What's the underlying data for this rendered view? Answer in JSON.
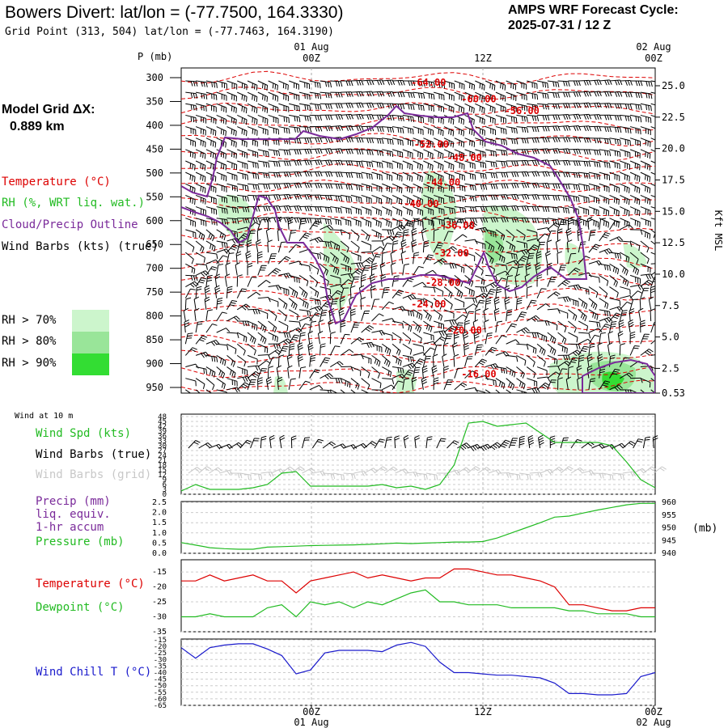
{
  "header": {
    "title": "Bowers Divert:  lat/lon = (-77.7500, 164.3330)",
    "subtitle": "Grid Point (313, 504) lat/lon = (-77.7463, 164.3190)",
    "cycle_line1": "AMPS WRF Forecast Cycle:",
    "cycle_line2": "2025-07-31 / 12  Z"
  },
  "model": {
    "label": "Model Grid ΔX:",
    "value": "0.889 km"
  },
  "legend": {
    "temperature": "Temperature (°C)",
    "rh": "RH (%, WRT liq. wat.)",
    "cloud": "Cloud/Precip Outline",
    "barbs": "Wind Barbs (kts) (true)",
    "rh70": "RH > 70%",
    "rh80": "RH > 80%",
    "rh90": "RH > 90%"
  },
  "colors": {
    "temp": "#dd0000",
    "rh_green": "#22bb22",
    "cloud": "#7a2a9a",
    "rh70": "#ccf5cc",
    "rh80": "#99e599",
    "rh90": "#33dd33",
    "chill": "#1a1acc"
  },
  "time_axis": {
    "top_dates": [
      "01 Aug",
      "02 Aug"
    ],
    "ticks": [
      "00Z",
      "12Z",
      "00Z"
    ],
    "bottom_dates": [
      "01 Aug",
      "02 Aug"
    ]
  },
  "chart_data": [
    {
      "type": "line",
      "panel": "vertical_cross_section",
      "y_axis_label": "P (mb)",
      "y_ticks": [
        "300",
        "350",
        "400",
        "450",
        "500",
        "550",
        "600",
        "650",
        "700",
        "750",
        "800",
        "850",
        "900",
        "950"
      ],
      "right_ticks": [
        "25.0",
        "22.5",
        "20.0",
        "17.5",
        "15.0",
        "12.5",
        "10.0",
        "7.5",
        "5.0",
        "2.5",
        "0.53"
      ],
      "right_axis_label": "Kft MSL",
      "ylim": [
        950,
        300
      ],
      "isotherm_labels": [
        {
          "text": "-64.00",
          "t": 7.0,
          "p": 310
        },
        {
          "text": "-60.00",
          "t": 10.5,
          "p": 345
        },
        {
          "text": "-56.00",
          "t": 13.5,
          "p": 370
        },
        {
          "text": "-52.00",
          "t": 7.2,
          "p": 440
        },
        {
          "text": "-48.00",
          "t": 9.5,
          "p": 468
        },
        {
          "text": "-44.00",
          "t": 8.0,
          "p": 520
        },
        {
          "text": "-40.00",
          "t": 6.5,
          "p": 565
        },
        {
          "text": "-36.00",
          "t": 9.0,
          "p": 610
        },
        {
          "text": "-32.00",
          "t": 8.6,
          "p": 668
        },
        {
          "text": "-28.00",
          "t": 8.0,
          "p": 730
        },
        {
          "text": "-24.00",
          "t": 7.0,
          "p": 775
        },
        {
          "text": "-20.00",
          "t": 9.5,
          "p": 830
        },
        {
          "text": "-16.00",
          "t": 10.5,
          "p": 922
        }
      ]
    },
    {
      "type": "line",
      "panel": "wind_10m",
      "title": "Wind at 10 m",
      "labels": [
        "Wind Spd (kts)",
        "Wind Barbs (true)",
        "Wind Barbs (grid)"
      ],
      "y_ticks": [
        "48",
        "45",
        "42",
        "39",
        "36",
        "33",
        "30",
        "27",
        "24",
        "21",
        "18",
        "15",
        "12",
        "9",
        "6",
        "3",
        "0"
      ],
      "ylim": [
        0,
        48
      ],
      "x": [
        -9,
        -8,
        -7,
        -6,
        -5,
        -4,
        -3,
        -2,
        -1,
        0,
        1,
        2,
        3,
        4,
        5,
        6,
        7,
        8,
        9,
        10,
        11,
        12,
        13,
        14,
        15,
        16,
        17,
        18,
        19,
        20,
        21,
        22,
        23,
        24
      ],
      "values": [
        2,
        6,
        3,
        3,
        3,
        4,
        6,
        13,
        14,
        5,
        5,
        5,
        5,
        5,
        6,
        4,
        5,
        3,
        6,
        18,
        44,
        45,
        42,
        43,
        44,
        38,
        32,
        32,
        32,
        32,
        30,
        20,
        9,
        4
      ]
    },
    {
      "type": "line",
      "panel": "precip_pressure",
      "labels": [
        "Precip (mm)",
        "liq. equiv.",
        "1-hr accum",
        "Pressure (mb)"
      ],
      "left_ticks": [
        "2.5",
        "2.0",
        "1.5",
        "1.0",
        "0.5",
        "0.0"
      ],
      "right_ticks": [
        "960",
        "955",
        "950",
        "945",
        "940"
      ],
      "right_unit": "(mb)",
      "ylim_precip": [
        0,
        2.5
      ],
      "ylim_pressure": [
        940,
        960
      ],
      "x": [
        -9,
        -8,
        -7,
        -6,
        -5,
        -4,
        -3,
        -2,
        -1,
        0,
        1,
        2,
        3,
        4,
        5,
        6,
        7,
        8,
        9,
        10,
        11,
        12,
        13,
        14,
        15,
        16,
        17,
        18,
        19,
        20,
        21,
        22,
        23,
        24
      ],
      "pressure": [
        944.2,
        943.2,
        942.2,
        941.8,
        941.6,
        941.6,
        942.4,
        942.6,
        942.8,
        943.0,
        943.1,
        943.2,
        943.3,
        943.5,
        943.7,
        944.0,
        943.8,
        944.0,
        944.2,
        944.4,
        944.4,
        944.6,
        946.0,
        948.0,
        950.0,
        952.0,
        954.2,
        954.6,
        955.8,
        957.0,
        958.0,
        959.0,
        959.6,
        959.6
      ]
    },
    {
      "type": "line",
      "panel": "temperature_dewpoint",
      "labels": [
        "Temperature (°C)",
        "Dewpoint (°C)"
      ],
      "y_ticks": [
        "-15",
        "-20",
        "-25",
        "-30",
        "-35"
      ],
      "ylim": [
        -35,
        -12
      ],
      "x": [
        -9,
        -8,
        -7,
        -6,
        -5,
        -4,
        -3,
        -2,
        -1,
        0,
        1,
        2,
        3,
        4,
        5,
        6,
        7,
        8,
        9,
        10,
        11,
        12,
        13,
        14,
        15,
        16,
        17,
        18,
        19,
        20,
        21,
        22,
        23,
        24
      ],
      "temperature": [
        -18,
        -18,
        -16,
        -18,
        -17,
        -16,
        -18,
        -18,
        -22,
        -18,
        -17,
        -16,
        -15,
        -17,
        -16,
        -17,
        -18,
        -17,
        -17,
        -14,
        -14,
        -15,
        -16,
        -16,
        -17,
        -18,
        -20,
        -26,
        -26,
        -27,
        -28,
        -28,
        -27,
        -27
      ],
      "dewpoint": [
        -30,
        -30,
        -29,
        -30,
        -30,
        -30,
        -27,
        -26,
        -30,
        -25,
        -26,
        -25,
        -27,
        -25,
        -26,
        -24,
        -22,
        -21,
        -25,
        -25,
        -26,
        -26,
        -26,
        -27,
        -27,
        -27,
        -27,
        -28,
        -28,
        -29,
        -29,
        -29,
        -30,
        -30
      ]
    },
    {
      "type": "line",
      "panel": "wind_chill",
      "labels": [
        "Wind Chill T (°C)"
      ],
      "y_ticks": [
        "-15",
        "-20",
        "-25",
        "-30",
        "-35",
        "-40",
        "-45",
        "-50",
        "-55",
        "-60",
        "-65"
      ],
      "ylim": [
        -65,
        -15
      ],
      "x": [
        -9,
        -8,
        -7,
        -6,
        -5,
        -4,
        -3,
        -2,
        -1,
        0,
        1,
        2,
        3,
        4,
        5,
        6,
        7,
        8,
        9,
        10,
        11,
        12,
        13,
        14,
        15,
        16,
        17,
        18,
        19,
        20,
        21,
        22,
        23,
        24
      ],
      "values": [
        -21,
        -29,
        -21,
        -19,
        -18,
        -18,
        -22,
        -27,
        -41,
        -38,
        -25,
        -23,
        -23,
        -23,
        -24,
        -19,
        -17,
        -20,
        -32,
        -40,
        -40,
        -41,
        -42,
        -42,
        -43,
        -44,
        -48,
        -56,
        -56,
        -57,
        -57,
        -56,
        -43,
        -40
      ]
    }
  ]
}
